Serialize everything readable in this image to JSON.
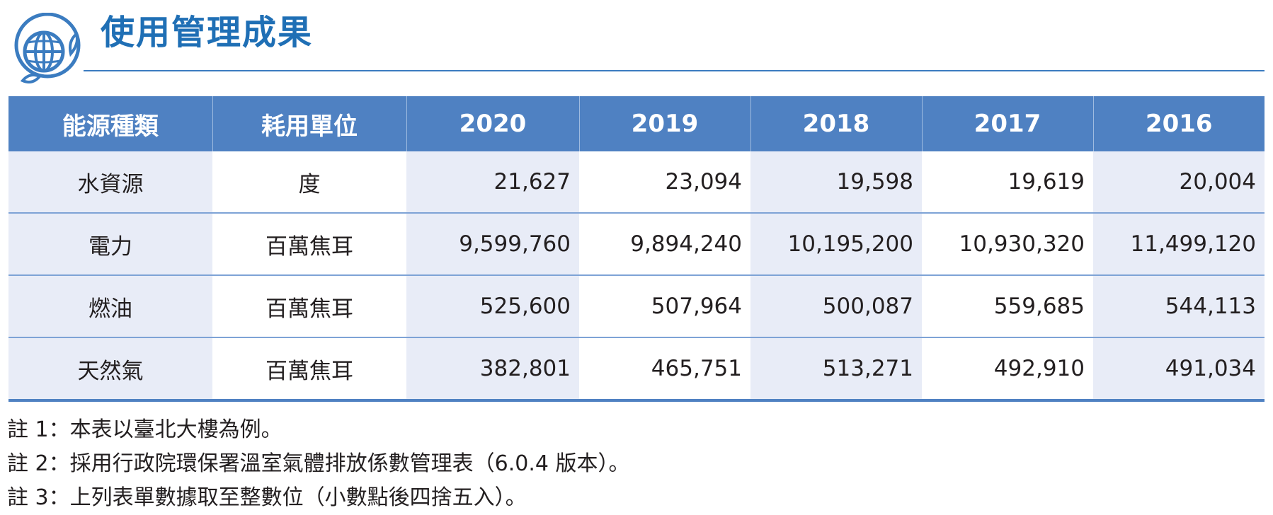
{
  "header": {
    "title": "使用管理成果",
    "logo_icon": "globe-leaf-icon"
  },
  "colors": {
    "title_blue": "#1f6fb5",
    "header_blue": "#4f81c2",
    "row_shade": "#e8ecf7",
    "rule_blue": "#7ea3d6"
  },
  "table": {
    "columns": [
      "能源種類",
      "耗用單位",
      "2020",
      "2019",
      "2018",
      "2017",
      "2016"
    ],
    "rows": [
      {
        "type": "水資源",
        "unit": "度",
        "values": [
          "21,627",
          "23,094",
          "19,598",
          "19,619",
          "20,004"
        ]
      },
      {
        "type": "電力",
        "unit": "百萬焦耳",
        "values": [
          "9,599,760",
          "9,894,240",
          "10,195,200",
          "10,930,320",
          "11,499,120"
        ]
      },
      {
        "type": "燃油",
        "unit": "百萬焦耳",
        "values": [
          "525,600",
          "507,964",
          "500,087",
          "559,685",
          "544,113"
        ]
      },
      {
        "type": "天然氣",
        "unit": "百萬焦耳",
        "values": [
          "382,801",
          "465,751",
          "513,271",
          "492,910",
          "491,034"
        ]
      }
    ]
  },
  "notes": [
    "註 1：本表以臺北大樓為例。",
    "註 2：採用行政院環保署溫室氣體排放係數管理表（6.0.4 版本）。",
    "註 3：上列表單數據取至整數位（小數點後四捨五入）。"
  ]
}
